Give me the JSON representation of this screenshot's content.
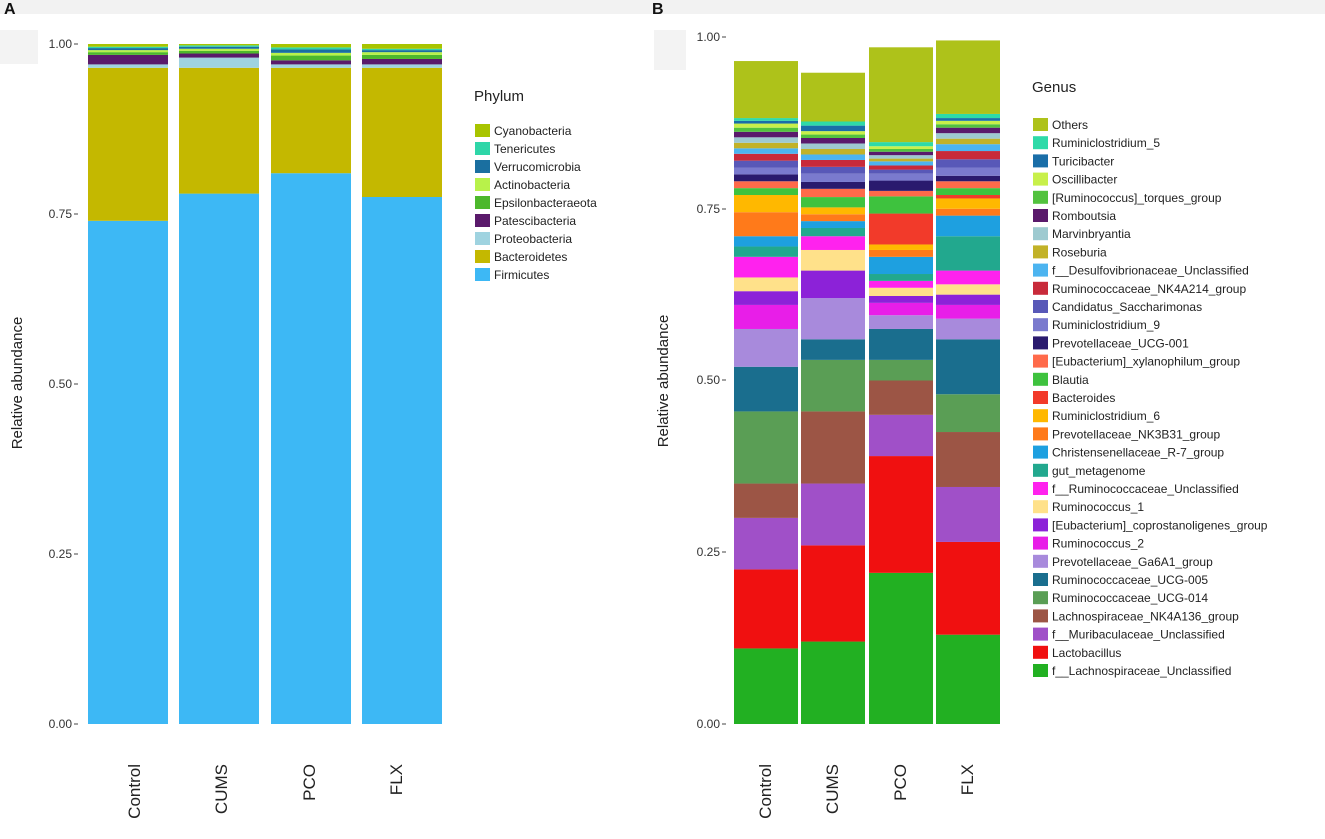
{
  "panels": [
    {
      "label": "A",
      "ylabel": "Relative abundance",
      "yticks": [
        "0.00",
        "0.25",
        "0.50",
        "0.75",
        "1.00"
      ],
      "legend_title": "Phylum",
      "categories": [
        "Control",
        "CUMS",
        "PCO",
        "FLX"
      ]
    },
    {
      "label": "B",
      "ylabel": "Relative abundance",
      "yticks": [
        "0.00",
        "0.25",
        "0.50",
        "0.75",
        "1.00"
      ],
      "legend_title": "Genus",
      "categories": [
        "Control",
        "CUMS",
        "PCO",
        "FLX"
      ]
    }
  ],
  "chart_data": [
    {
      "type": "bar",
      "stacked": true,
      "title": "A",
      "xlabel": "",
      "ylabel": "Relative abundance",
      "ylim": [
        0,
        1
      ],
      "yticks": [
        0,
        0.25,
        0.5,
        0.75,
        1.0
      ],
      "legend_title": "Phylum",
      "legend_position": "right",
      "categories": [
        "Control",
        "CUMS",
        "PCO",
        "FLX"
      ],
      "series": [
        {
          "name": "Firmicutes",
          "color": "#3DB8F5",
          "values": [
            0.74,
            0.78,
            0.81,
            0.775
          ]
        },
        {
          "name": "Bacteroidetes",
          "color": "#C4B800",
          "values": [
            0.225,
            0.185,
            0.155,
            0.19
          ]
        },
        {
          "name": "Proteobacteria",
          "color": "#9FD3E0",
          "values": [
            0.005,
            0.015,
            0.005,
            0.005
          ]
        },
        {
          "name": "Patescibacteria",
          "color": "#5A1A6B",
          "values": [
            0.014,
            0.006,
            0.006,
            0.008
          ]
        },
        {
          "name": "Epsilonbacteraeota",
          "color": "#4DB82C",
          "values": [
            0.004,
            0.004,
            0.007,
            0.006
          ]
        },
        {
          "name": "Actinobacteria",
          "color": "#B8F24A",
          "values": [
            0.003,
            0.003,
            0.004,
            0.004
          ]
        },
        {
          "name": "Verrucomicrobia",
          "color": "#1A6FA0",
          "values": [
            0.003,
            0.003,
            0.005,
            0.003
          ]
        },
        {
          "name": "Tenericutes",
          "color": "#2ED6A8",
          "values": [
            0.002,
            0.002,
            0.003,
            0.002
          ]
        },
        {
          "name": "Cyanobacteria",
          "color": "#A8C400",
          "values": [
            0.004,
            0.002,
            0.005,
            0.007
          ]
        }
      ]
    },
    {
      "type": "bar",
      "stacked": true,
      "title": "B",
      "xlabel": "",
      "ylabel": "Relative abundance",
      "ylim": [
        0,
        1
      ],
      "yticks": [
        0,
        0.25,
        0.5,
        0.75,
        1.0
      ],
      "legend_title": "Genus",
      "legend_position": "right",
      "categories": [
        "Control",
        "CUMS",
        "PCO",
        "FLX"
      ],
      "series": [
        {
          "name": "f__Lachnospiraceae_Unclassified",
          "color": "#22B022",
          "values": [
            0.11,
            0.12,
            0.22,
            0.13
          ]
        },
        {
          "name": "Lactobacillus",
          "color": "#F01010",
          "values": [
            0.115,
            0.14,
            0.17,
            0.135
          ]
        },
        {
          "name": "f__Muribaculaceae_Unclassified",
          "color": "#A050C8",
          "values": [
            0.075,
            0.09,
            0.06,
            0.08
          ]
        },
        {
          "name": "Lachnospiraceae_NK4A136_group",
          "color": "#9C5545",
          "values": [
            0.05,
            0.105,
            0.05,
            0.08
          ]
        },
        {
          "name": "Ruminococcaceae_UCG-014",
          "color": "#5A9E55",
          "values": [
            0.105,
            0.075,
            0.03,
            0.055
          ]
        },
        {
          "name": "Ruminococcaceae_UCG-005",
          "color": "#1A6E8E",
          "values": [
            0.065,
            0.03,
            0.045,
            0.08
          ]
        },
        {
          "name": "Prevotellaceae_Ga6A1_group",
          "color": "#A88ADC",
          "values": [
            0.055,
            0.06,
            0.02,
            0.03
          ]
        },
        {
          "name": "Ruminococcus_2",
          "color": "#E81EE8",
          "values": [
            0.035,
            0.0,
            0.018,
            0.02
          ]
        },
        {
          "name": "[Eubacterium]_coprostanoligenes_group",
          "color": "#8C22D8",
          "values": [
            0.02,
            0.04,
            0.01,
            0.015
          ]
        },
        {
          "name": "Ruminococcus_1",
          "color": "#FFE18A",
          "values": [
            0.02,
            0.03,
            0.012,
            0.015
          ]
        },
        {
          "name": "f__Ruminococcaceae_Unclassified",
          "color": "#FF22EE",
          "values": [
            0.03,
            0.02,
            0.01,
            0.02
          ]
        },
        {
          "name": "gut_metagenome",
          "color": "#22A88E",
          "values": [
            0.015,
            0.012,
            0.01,
            0.05
          ]
        },
        {
          "name": "Christensenellaceae_R-7_group",
          "color": "#1EA0E0",
          "values": [
            0.015,
            0.01,
            0.025,
            0.03
          ]
        },
        {
          "name": "Prevotellaceae_NK3B31_group",
          "color": "#FF7A1A",
          "values": [
            0.035,
            0.01,
            0.01,
            0.01
          ]
        },
        {
          "name": "Ruminiclostridium_6",
          "color": "#FFB800",
          "values": [
            0.025,
            0.01,
            0.008,
            0.015
          ]
        },
        {
          "name": "Bacteroides",
          "color": "#F23A2A",
          "values": [
            0.0,
            0.0,
            0.045,
            0.005
          ]
        },
        {
          "name": "Blautia",
          "color": "#3EC23E",
          "values": [
            0.01,
            0.015,
            0.025,
            0.01
          ]
        },
        {
          "name": "[Eubacterium]_xylanophilum_group",
          "color": "#FF6A4A",
          "values": [
            0.01,
            0.012,
            0.008,
            0.01
          ]
        },
        {
          "name": "Prevotellaceae_UCG-001",
          "color": "#2A1A6E",
          "values": [
            0.01,
            0.01,
            0.015,
            0.008
          ]
        },
        {
          "name": "Ruminiclostridium_9",
          "color": "#7A7ACE",
          "values": [
            0.01,
            0.012,
            0.01,
            0.012
          ]
        },
        {
          "name": "Candidatus_Saccharimonas",
          "color": "#5858B8",
          "values": [
            0.01,
            0.01,
            0.006,
            0.012
          ]
        },
        {
          "name": "Ruminococcaceae_NK4A214_group",
          "color": "#C82A3A",
          "values": [
            0.01,
            0.01,
            0.006,
            0.012
          ]
        },
        {
          "name": "f__Desulfovibrionaceae_Unclassified",
          "color": "#4CB4F0",
          "values": [
            0.008,
            0.008,
            0.006,
            0.01
          ]
        },
        {
          "name": "Roseburia",
          "color": "#C2B228",
          "values": [
            0.008,
            0.008,
            0.004,
            0.008
          ]
        },
        {
          "name": "Marvinbryantia",
          "color": "#9ECAD0",
          "values": [
            0.008,
            0.008,
            0.005,
            0.008
          ]
        },
        {
          "name": "Romboutsia",
          "color": "#5A1A6B",
          "values": [
            0.008,
            0.008,
            0.005,
            0.008
          ]
        },
        {
          "name": "[Ruminococcus]_torques_group",
          "color": "#52C23E",
          "values": [
            0.006,
            0.005,
            0.004,
            0.005
          ]
        },
        {
          "name": "Oscillibacter",
          "color": "#C8F04A",
          "values": [
            0.006,
            0.005,
            0.004,
            0.005
          ]
        },
        {
          "name": "Turicibacter",
          "color": "#1A6EA8",
          "values": [
            0.004,
            0.008,
            0.0,
            0.004
          ]
        },
        {
          "name": "Ruminiclostridium_5",
          "color": "#2EDAA8",
          "values": [
            0.004,
            0.006,
            0.006,
            0.006
          ]
        },
        {
          "name": "Others",
          "color": "#AEC21A",
          "values": [
            0.083,
            0.071,
            0.138,
            0.107
          ]
        }
      ]
    }
  ]
}
